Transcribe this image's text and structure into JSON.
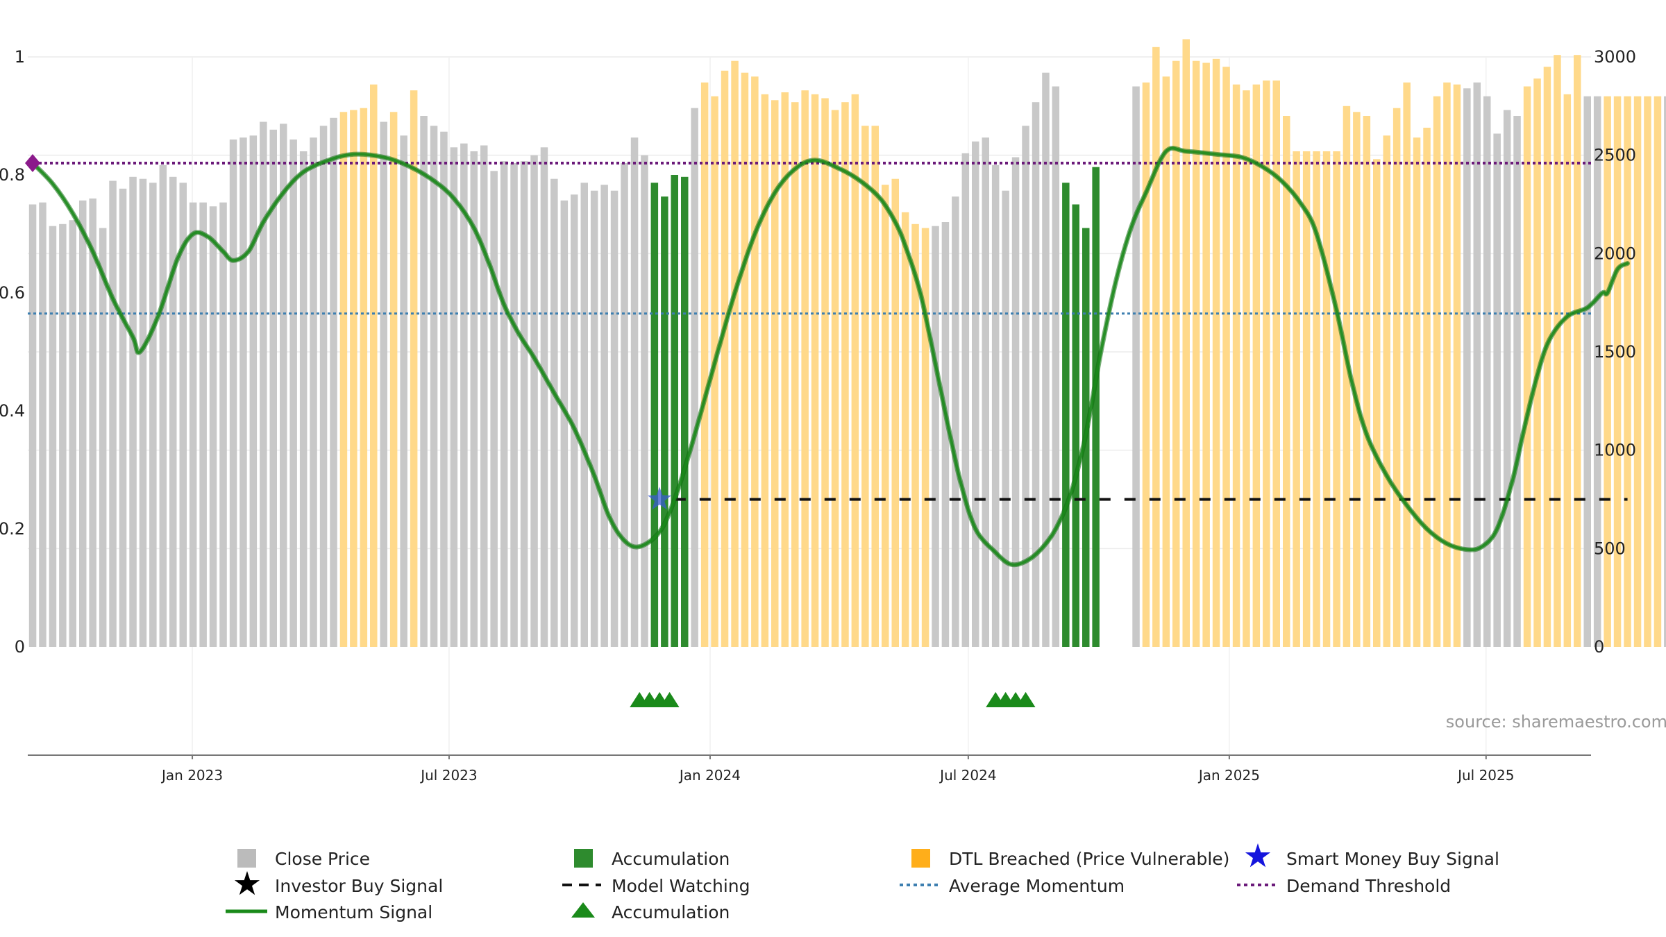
{
  "chart_data": {
    "type": "bar",
    "source": "source: sharemaestro.com",
    "left_axis": {
      "ticks": [
        "0",
        "0.2",
        "0.4",
        "0.6",
        "0.8",
        "1"
      ],
      "ylim": [
        0,
        1
      ]
    },
    "right_axis": {
      "ticks": [
        "0",
        "500",
        "1000",
        "1500",
        "2000",
        "2500",
        "3000"
      ],
      "ylim": [
        0,
        3000
      ]
    },
    "x_axis": {
      "ticks": [
        "Jan 2023",
        "Jul 2023",
        "Jan 2024",
        "Jul 2024",
        "Jan 2025",
        "Jul 2025"
      ],
      "tick_dates": [
        "2023-01-01",
        "2023-07-01",
        "2024-01-01",
        "2024-07-01",
        "2025-01-01",
        "2025-07-01"
      ],
      "range": [
        "2022-09-07",
        "2025-09-13"
      ]
    },
    "bar_start": "2022-09-11",
    "bar_interval_days": 7,
    "close_price": [
      2250,
      2260,
      2140,
      2150,
      2170,
      2270,
      2280,
      2130,
      2370,
      2330,
      2390,
      2380,
      2360,
      2450,
      2390,
      2360,
      2260,
      2260,
      2240,
      2260,
      2580,
      2590,
      2600,
      2670,
      2630,
      2660,
      2580,
      2520,
      2590,
      2650,
      2690,
      2720,
      2730,
      2740,
      2860,
      2670,
      2720,
      2600,
      2830,
      2700,
      2650,
      2620,
      2540,
      2560,
      2520,
      2550,
      2420,
      2470,
      2460,
      2470,
      2500,
      2540,
      2380,
      2270,
      2300,
      2360,
      2320,
      2350,
      2320,
      2460,
      2590,
      2500,
      2610,
      2600,
      2540,
      2730,
      2740,
      2870,
      2800,
      2930,
      2980,
      2920,
      2900,
      2810,
      2780,
      2820,
      2770,
      2830,
      2810,
      2790,
      2730,
      2770,
      2810,
      2650,
      2650,
      2350,
      2380,
      2210,
      2150,
      2130,
      2140,
      2160,
      2290,
      2510,
      2570,
      2590,
      2450,
      2320,
      2490,
      2650,
      2770,
      2920,
      2850,
      2880,
      2890,
      3040,
      3000,
      2960,
      2890,
      2830,
      2850,
      2870,
      3050,
      2900,
      2980,
      3090,
      2980,
      2970,
      2990,
      2950,
      2860,
      2830,
      2860,
      2880,
      2880,
      2700,
      2520,
      2520,
      2520,
      2520,
      2520,
      2750,
      2720,
      2700,
      2480,
      2600,
      2740,
      2870,
      2590,
      2640,
      2800,
      2870,
      2860,
      2840,
      2870,
      2800,
      2610,
      2730,
      2700,
      2850,
      2890,
      2950,
      3010,
      2810,
      3010,
      2800
    ],
    "accumulation_bars": [
      2360,
      2290,
      2400,
      2390,
      2360,
      2250,
      2130,
      2440
    ],
    "states": "GGGGGGGGGGGGGGGGGGGGGGGGGGGGGGGDDDDGDGDGGGGGGGGGGGGGGGGGGGGGGGAAAAGDDDDDDDDDDDDDDDDDDDDDDDGGGGGGGGGGGGGAAAAAAAGDDDDDDDDDDDDDDDDDDDDDDDDDDDDDDDDGGGGGGDDDDDDGGDDDDDDGDGDDDDDDDD",
    "momentum": [
      [
        0.82,
        0
      ],
      [
        0.785,
        2
      ],
      [
        0.735,
        4
      ],
      [
        0.67,
        6
      ],
      [
        0.59,
        8
      ],
      [
        0.525,
        10
      ],
      [
        0.5,
        10.7
      ],
      [
        0.56,
        12.5
      ],
      [
        0.66,
        14.5
      ],
      [
        0.7,
        16
      ],
      [
        0.695,
        17.5
      ],
      [
        0.67,
        19
      ],
      [
        0.655,
        20
      ],
      [
        0.67,
        21.5
      ],
      [
        0.72,
        23
      ],
      [
        0.77,
        25
      ],
      [
        0.805,
        27
      ],
      [
        0.825,
        29.5
      ],
      [
        0.835,
        32
      ],
      [
        0.83,
        35
      ],
      [
        0.815,
        37.5
      ],
      [
        0.79,
        40
      ],
      [
        0.76,
        42
      ],
      [
        0.71,
        44
      ],
      [
        0.65,
        45.5
      ],
      [
        0.58,
        47
      ],
      [
        0.53,
        48.5
      ],
      [
        0.49,
        50
      ],
      [
        0.43,
        52
      ],
      [
        0.37,
        54
      ],
      [
        0.29,
        56
      ],
      [
        0.22,
        57.5
      ],
      [
        0.18,
        59
      ],
      [
        0.17,
        60.5
      ],
      [
        0.195,
        62.5
      ],
      [
        0.25,
        64
      ],
      [
        0.33,
        65.5
      ],
      [
        0.42,
        67
      ],
      [
        0.5,
        68.3
      ],
      [
        0.6,
        70
      ],
      [
        0.7,
        72
      ],
      [
        0.77,
        74
      ],
      [
        0.81,
        76
      ],
      [
        0.825,
        78
      ],
      [
        0.81,
        80.5
      ],
      [
        0.79,
        82.5
      ],
      [
        0.76,
        84.5
      ],
      [
        0.72,
        86
      ],
      [
        0.68,
        87
      ],
      [
        0.6,
        88.5
      ],
      [
        0.48,
        90
      ],
      [
        0.38,
        91.2
      ],
      [
        0.28,
        92.5
      ],
      [
        0.2,
        94
      ],
      [
        0.16,
        96
      ],
      [
        0.14,
        97.5
      ],
      [
        0.145,
        99
      ],
      [
        0.165,
        100.5
      ],
      [
        0.2,
        102
      ],
      [
        0.26,
        103.5
      ],
      [
        0.36,
        105
      ],
      [
        0.5,
        106.5
      ],
      [
        0.62,
        108
      ],
      [
        0.71,
        109.5
      ],
      [
        0.77,
        111
      ],
      [
        0.84,
        113
      ],
      [
        0.84,
        115
      ],
      [
        0.835,
        118
      ],
      [
        0.83,
        120.5
      ],
      [
        0.815,
        122.5
      ],
      [
        0.79,
        124.5
      ],
      [
        0.75,
        126.5
      ],
      [
        0.7,
        128
      ],
      [
        0.57,
        130
      ],
      [
        0.45,
        131.5
      ],
      [
        0.36,
        133
      ],
      [
        0.29,
        135
      ],
      [
        0.24,
        137
      ],
      [
        0.2,
        139
      ],
      [
        0.175,
        141
      ],
      [
        0.165,
        143
      ],
      [
        0.17,
        144.5
      ],
      [
        0.2,
        146
      ],
      [
        0.28,
        147.5
      ],
      [
        0.37,
        148.7
      ],
      [
        0.46,
        150
      ],
      [
        0.52,
        151.2
      ],
      [
        0.56,
        153
      ],
      [
        0.575,
        155
      ],
      [
        0.6,
        156.5
      ],
      [
        0.6,
        157
      ],
      [
        0.64,
        158
      ],
      [
        0.65,
        159
      ]
    ],
    "average_momentum": 0.565,
    "demand_threshold": 0.82,
    "model_watching": {
      "value": 0.25,
      "from": 64,
      "to": 159
    },
    "smart_money_buy_signal": {
      "index": 62.5,
      "value": 0.25
    },
    "accumulation_markers": [
      [
        60.5,
        61.5,
        62.5,
        63.5
      ],
      [
        96,
        97,
        98,
        99
      ]
    ],
    "colors": {
      "close": "#c8c8c8",
      "accumulation": "#2e8b2e",
      "dtl": "#ffd98a",
      "momentum": "#1a8a1a",
      "avg_momentum": "#3d7fb0",
      "demand": "#6b1a7a",
      "smart_money": "#1515dd",
      "marker_start": "#8b1a8b"
    }
  },
  "legend": {
    "close_price": "Close Price",
    "accumulation": "Accumulation",
    "dtl": "DTL Breached (Price Vulnerable)",
    "smart_money": "Smart Money Buy Signal",
    "investor_buy": "Investor Buy Signal",
    "model_watching": "Model Watching",
    "avg_momentum": "Average Momentum",
    "demand_threshold": "Demand Threshold",
    "momentum_signal": "Momentum Signal",
    "accumulation_marker": "Accumulation"
  }
}
